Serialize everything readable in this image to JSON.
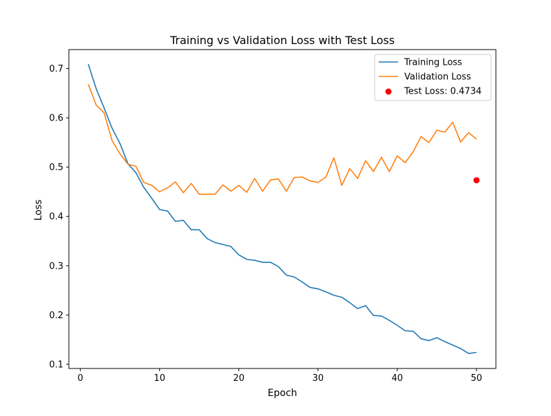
{
  "chart_data": {
    "type": "line",
    "title": "Training vs Validation Loss with Test Loss",
    "xlabel": "Epoch",
    "ylabel": "Loss",
    "xlim": [
      -1.45,
      52.45
    ],
    "ylim": [
      0.0915,
      0.7385
    ],
    "xticks": [
      0,
      10,
      20,
      30,
      40,
      50
    ],
    "yticks": [
      0.1,
      0.2,
      0.3,
      0.4,
      0.5,
      0.6,
      0.7
    ],
    "grid": false,
    "legend_position": "top-right",
    "x": [
      1,
      2,
      3,
      4,
      5,
      6,
      7,
      8,
      9,
      10,
      11,
      12,
      13,
      14,
      15,
      16,
      17,
      18,
      19,
      20,
      21,
      22,
      23,
      24,
      25,
      26,
      27,
      28,
      29,
      30,
      31,
      32,
      33,
      34,
      35,
      36,
      37,
      38,
      39,
      40,
      41,
      42,
      43,
      44,
      45,
      46,
      47,
      48,
      49,
      50
    ],
    "series": [
      {
        "name": "Training Loss",
        "color": "#1f77b4",
        "values": [
          0.709,
          0.659,
          0.62,
          0.579,
          0.548,
          0.507,
          0.489,
          0.459,
          0.437,
          0.414,
          0.411,
          0.39,
          0.392,
          0.373,
          0.373,
          0.355,
          0.347,
          0.343,
          0.339,
          0.322,
          0.313,
          0.311,
          0.307,
          0.307,
          0.298,
          0.281,
          0.277,
          0.267,
          0.256,
          0.253,
          0.247,
          0.24,
          0.236,
          0.225,
          0.213,
          0.219,
          0.199,
          0.198,
          0.189,
          0.179,
          0.168,
          0.167,
          0.152,
          0.148,
          0.154,
          0.146,
          0.139,
          0.132,
          0.122,
          0.124
        ]
      },
      {
        "name": "Validation Loss",
        "color": "#ff7f0e",
        "values": [
          0.668,
          0.626,
          0.61,
          0.554,
          0.527,
          0.506,
          0.502,
          0.469,
          0.463,
          0.45,
          0.458,
          0.47,
          0.448,
          0.467,
          0.445,
          0.445,
          0.445,
          0.464,
          0.451,
          0.463,
          0.449,
          0.477,
          0.451,
          0.474,
          0.476,
          0.451,
          0.479,
          0.48,
          0.472,
          0.469,
          0.48,
          0.519,
          0.463,
          0.497,
          0.477,
          0.513,
          0.491,
          0.52,
          0.491,
          0.523,
          0.509,
          0.531,
          0.562,
          0.55,
          0.575,
          0.571,
          0.591,
          0.551,
          0.57,
          0.557
        ]
      }
    ],
    "points": [
      {
        "name": "Test Loss: 0.4734",
        "x": 50,
        "y": 0.4734,
        "color": "#ff0000"
      }
    ]
  }
}
